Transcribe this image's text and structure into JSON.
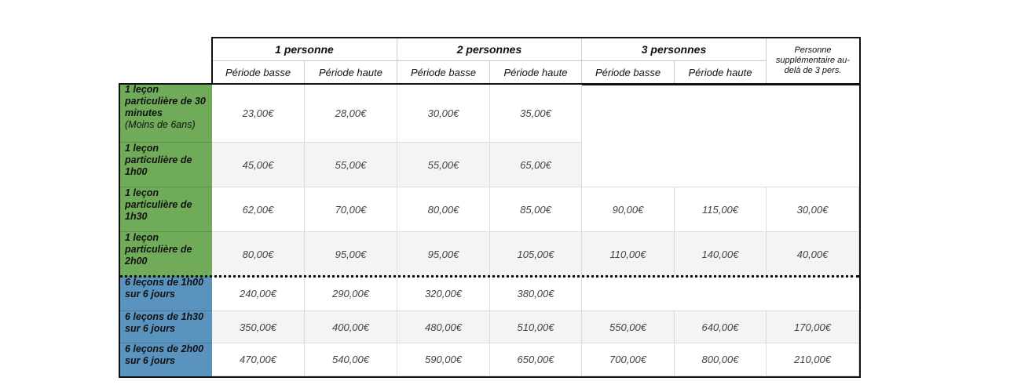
{
  "header": {
    "groups": [
      "1 personne",
      "2 personnes",
      "3 personnes",
      "Personne supplémentaire au-delà de 3 pers."
    ],
    "periods": [
      "Période basse",
      "Période haute",
      "Période basse",
      "Période haute",
      "Période basse",
      "Période haute"
    ]
  },
  "rows": [
    {
      "label": "1 leçon particulière de 30 minutes",
      "note": "(Moins de 6ans)",
      "prices": [
        "23,00€",
        "28,00€",
        "30,00€",
        "35,00€"
      ]
    },
    {
      "label": "1 leçon particulière de 1h00",
      "prices": [
        "45,00€",
        "55,00€",
        "55,00€",
        "65,00€"
      ]
    },
    {
      "label": "1 leçon particulière de 1h30",
      "prices": [
        "62,00€",
        "70,00€",
        "80,00€",
        "85,00€",
        "90,00€",
        "115,00€",
        "30,00€"
      ]
    },
    {
      "label": "1 leçon particulière de 2h00",
      "prices": [
        "80,00€",
        "95,00€",
        "95,00€",
        "105,00€",
        "110,00€",
        "140,00€",
        "40,00€"
      ]
    },
    {
      "label": "6 leçons de 1h00 sur 6 jours",
      "prices": [
        "240,00€",
        "290,00€",
        "320,00€",
        "380,00€"
      ]
    },
    {
      "label": "6 leçons de 1h30 sur 6 jours",
      "prices": [
        "350,00€",
        "400,00€",
        "480,00€",
        "510,00€",
        "550,00€",
        "640,00€",
        "170,00€"
      ]
    },
    {
      "label": "6 leçons de 2h00 sur 6 jours",
      "prices": [
        "470,00€",
        "540,00€",
        "590,00€",
        "650,00€",
        "700,00€",
        "800,00€",
        "210,00€"
      ]
    }
  ]
}
